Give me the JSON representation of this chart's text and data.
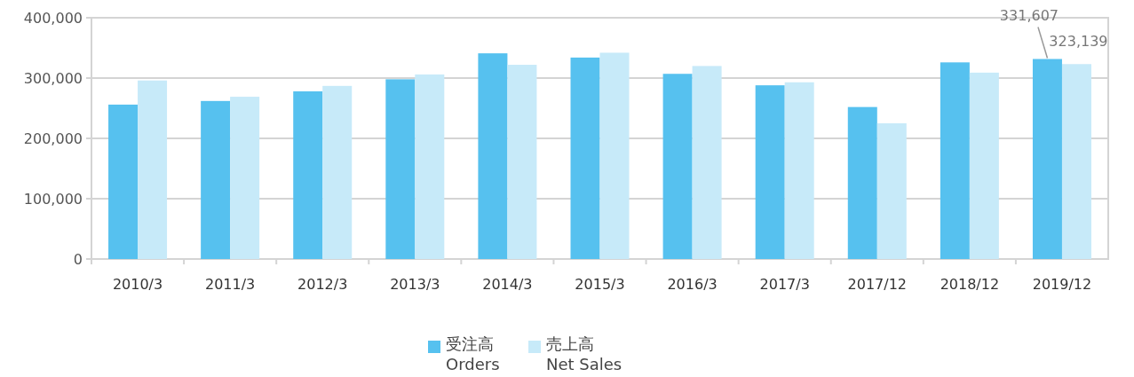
{
  "chart_data": {
    "type": "bar",
    "categories": [
      "2010/3",
      "2011/3",
      "2012/3",
      "2013/3",
      "2014/3",
      "2015/3",
      "2016/3",
      "2017/3",
      "2017/12",
      "2018/12",
      "2019/12"
    ],
    "series": [
      {
        "name": "受注高\nOrders",
        "color": "#56c1ef",
        "values": [
          256000,
          262000,
          278000,
          298000,
          341000,
          334000,
          307000,
          288000,
          252000,
          326000,
          331607
        ],
        "value_labels": [
          null,
          null,
          null,
          null,
          null,
          null,
          null,
          null,
          null,
          null,
          "331,607"
        ]
      },
      {
        "name": "売上高\nNet Sales",
        "color": "#c7eaf9",
        "values": [
          296000,
          269000,
          287000,
          306000,
          322000,
          342000,
          320000,
          293000,
          225000,
          309000,
          323139
        ],
        "value_labels": [
          null,
          null,
          null,
          null,
          null,
          null,
          null,
          null,
          null,
          null,
          "323,139"
        ]
      }
    ],
    "ylim": [
      0,
      400000
    ],
    "yticks": [
      {
        "value": 0,
        "label": "0"
      },
      {
        "value": 100000,
        "label": "100,000"
      },
      {
        "value": 200000,
        "label": "200,000"
      },
      {
        "value": 300000,
        "label": "300,000"
      },
      {
        "value": 400000,
        "label": "400,000"
      }
    ],
    "grid": "y",
    "legend": "bottom"
  }
}
